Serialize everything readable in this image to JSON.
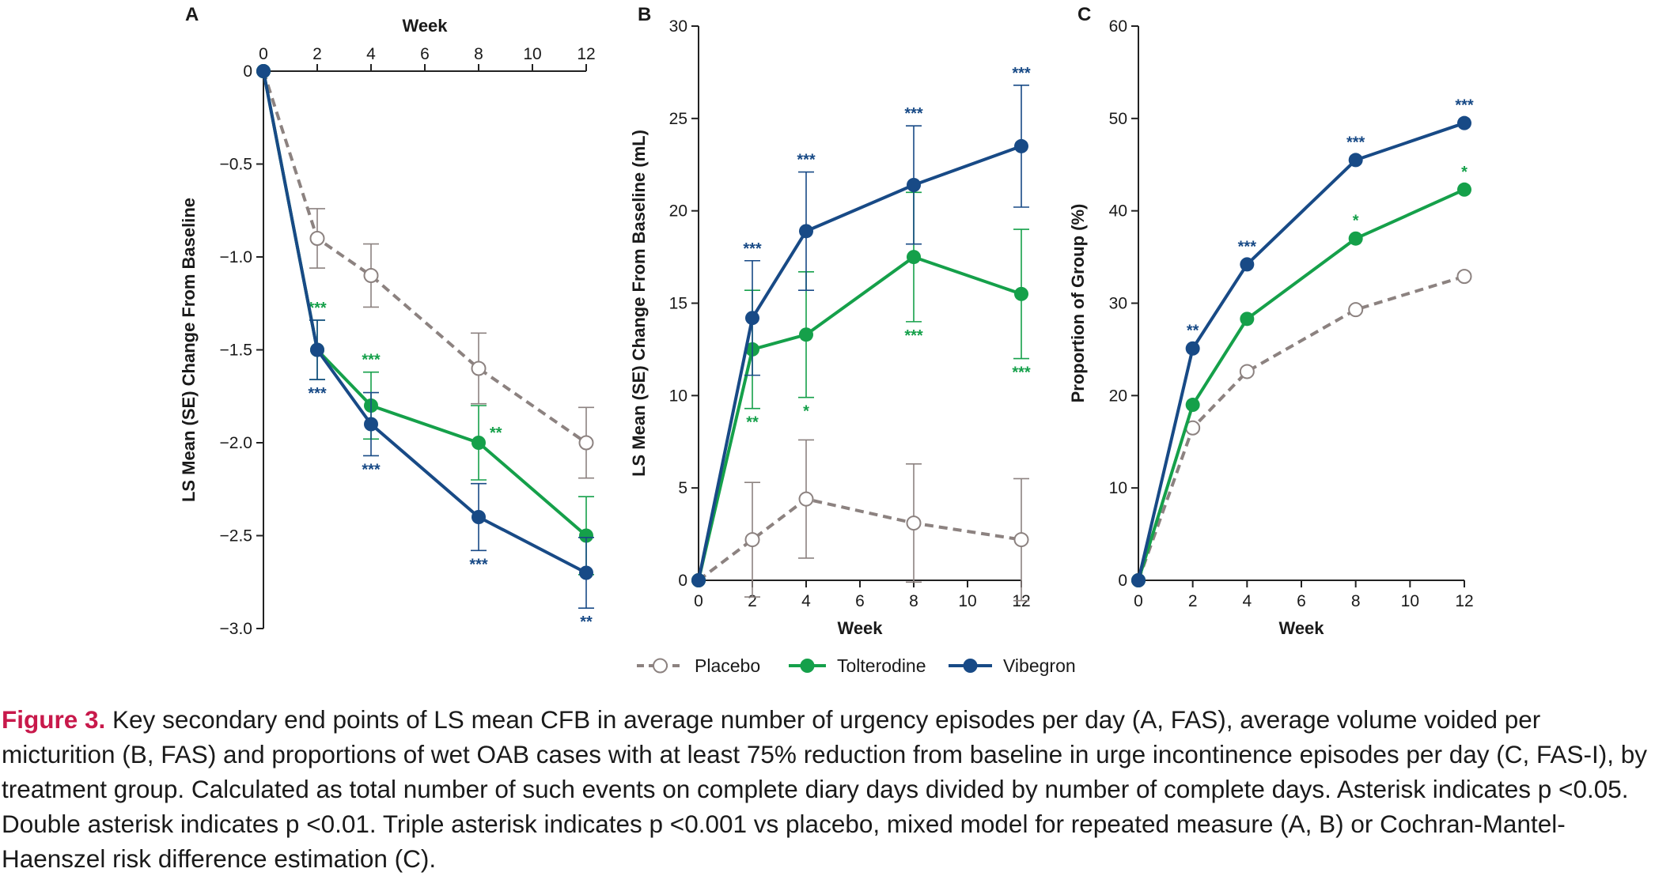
{
  "colors": {
    "placebo": "#8c8280",
    "tolterodine": "#15a04a",
    "vibegron": "#184a86",
    "axis": "#222222",
    "caption_label": "#c8194b"
  },
  "legend": [
    {
      "label": "Placebo",
      "series": "placebo",
      "style": "dashed-open-circle"
    },
    {
      "label": "Tolterodine",
      "series": "tolterodine",
      "style": "solid-filled-circle"
    },
    {
      "label": "Vibegron",
      "series": "vibegron",
      "style": "solid-filled-circle"
    }
  ],
  "chart_data": [
    {
      "panel": "A",
      "type": "line",
      "xlabel": "Week",
      "xlabel_position": "top",
      "ylabel": "LS Mean (SE) Change From Baseline",
      "xlim": [
        0,
        12
      ],
      "ylim": [
        -3.0,
        0
      ],
      "xticks": [
        "0",
        "2",
        "4",
        "6",
        "8",
        "10",
        "12"
      ],
      "yticks": [
        "0",
        "−0.5",
        "−1.0",
        "−1.5",
        "−2.0",
        "−2.5",
        "−3.0"
      ],
      "x": [
        0,
        2,
        4,
        8,
        12
      ],
      "series": [
        {
          "name": "Placebo",
          "key": "placebo",
          "values": [
            0,
            -0.9,
            -1.1,
            -1.6,
            -2.0
          ],
          "se": [
            0,
            0.16,
            0.17,
            0.19,
            0.19
          ],
          "sig": [
            "",
            "",
            "",
            "",
            ""
          ]
        },
        {
          "name": "Tolterodine",
          "key": "tolterodine",
          "values": [
            0,
            -1.5,
            -1.8,
            -2.0,
            -2.5
          ],
          "se": [
            0,
            0.16,
            0.18,
            0.2,
            0.21
          ],
          "sig": [
            "",
            "***",
            "***",
            "**",
            ""
          ],
          "sig_pos": [
            "",
            "above",
            "above",
            "right",
            ""
          ]
        },
        {
          "name": "Vibegron",
          "key": "vibegron",
          "values": [
            0,
            -1.5,
            -1.9,
            -2.4,
            -2.7
          ],
          "se": [
            0,
            0.16,
            0.17,
            0.18,
            0.19
          ],
          "sig": [
            "",
            "***",
            "***",
            "***",
            "**"
          ],
          "sig_pos": [
            "",
            "below",
            "below",
            "below",
            "below"
          ]
        }
      ]
    },
    {
      "panel": "B",
      "type": "line",
      "xlabel": "Week",
      "xlabel_position": "bottom",
      "ylabel": "LS Mean (SE) Change From Baseline (mL)",
      "xlim": [
        0,
        12
      ],
      "ylim": [
        0,
        30
      ],
      "xticks": [
        "0",
        "2",
        "4",
        "6",
        "8",
        "10",
        "12"
      ],
      "yticks": [
        "0",
        "5",
        "10",
        "15",
        "20",
        "25",
        "30"
      ],
      "x": [
        0,
        2,
        4,
        8,
        12
      ],
      "series": [
        {
          "name": "Placebo",
          "key": "placebo",
          "values": [
            0,
            2.2,
            4.4,
            3.1,
            2.2
          ],
          "se": [
            0,
            3.1,
            3.2,
            3.2,
            3.3
          ],
          "sig": [
            "",
            "",
            "",
            "",
            ""
          ]
        },
        {
          "name": "Tolterodine",
          "key": "tolterodine",
          "values": [
            0,
            12.5,
            13.3,
            17.5,
            15.5
          ],
          "se": [
            0,
            3.2,
            3.4,
            3.5,
            3.5
          ],
          "sig": [
            "",
            "**",
            "*",
            "***",
            "***"
          ],
          "sig_pos": [
            "",
            "below",
            "below",
            "below",
            "below"
          ]
        },
        {
          "name": "Vibegron",
          "key": "vibegron",
          "values": [
            0,
            14.2,
            18.9,
            21.4,
            23.5
          ],
          "se": [
            0,
            3.1,
            3.2,
            3.2,
            3.3
          ],
          "sig": [
            "",
            "***",
            "***",
            "***",
            "***"
          ],
          "sig_pos": [
            "",
            "above",
            "above",
            "above",
            "above"
          ]
        }
      ]
    },
    {
      "panel": "C",
      "type": "line",
      "xlabel": "Week",
      "xlabel_position": "bottom",
      "ylabel": "Proportion of Group (%)",
      "xlim": [
        0,
        12
      ],
      "ylim": [
        0,
        60
      ],
      "xticks": [
        "0",
        "2",
        "4",
        "6",
        "8",
        "10",
        "12"
      ],
      "yticks": [
        "0",
        "10",
        "20",
        "30",
        "40",
        "50",
        "60"
      ],
      "x": [
        0,
        2,
        4,
        8,
        12
      ],
      "series": [
        {
          "name": "Placebo",
          "key": "placebo",
          "values": [
            0,
            16.5,
            22.6,
            29.3,
            32.9
          ],
          "sig": [
            "",
            "",
            "",
            "",
            ""
          ]
        },
        {
          "name": "Tolterodine",
          "key": "tolterodine",
          "values": [
            0,
            19.0,
            28.3,
            37.0,
            42.3
          ],
          "sig": [
            "",
            "",
            "",
            "*",
            "*"
          ],
          "sig_pos": [
            "",
            "above",
            "above",
            "above",
            "above"
          ]
        },
        {
          "name": "Vibegron",
          "key": "vibegron",
          "values": [
            0,
            25.1,
            34.2,
            45.5,
            49.5
          ],
          "sig": [
            "",
            "**",
            "***",
            "***",
            "***"
          ],
          "sig_pos": [
            "",
            "above",
            "above",
            "above",
            "above"
          ]
        }
      ]
    }
  ],
  "caption": {
    "label": "Figure 3.",
    "text": " Key secondary end points of LS mean CFB in average number of urgency episodes per day (A, FAS), average volume voided per micturition (B, FAS) and proportions of wet OAB cases with at least 75% reduction from baseline in urge incontinence episodes per day (C, FAS-I), by treatment group. Calculated as total number of such events on complete diary days divided by number of complete days. Asterisk indicates p <0.05. Double asterisk indicates p <0.01. Triple asterisk indicates p <0.001 vs placebo, mixed model for repeated measure (A, B) or Cochran-Mantel-Haenszel risk difference estimation (C)."
  }
}
